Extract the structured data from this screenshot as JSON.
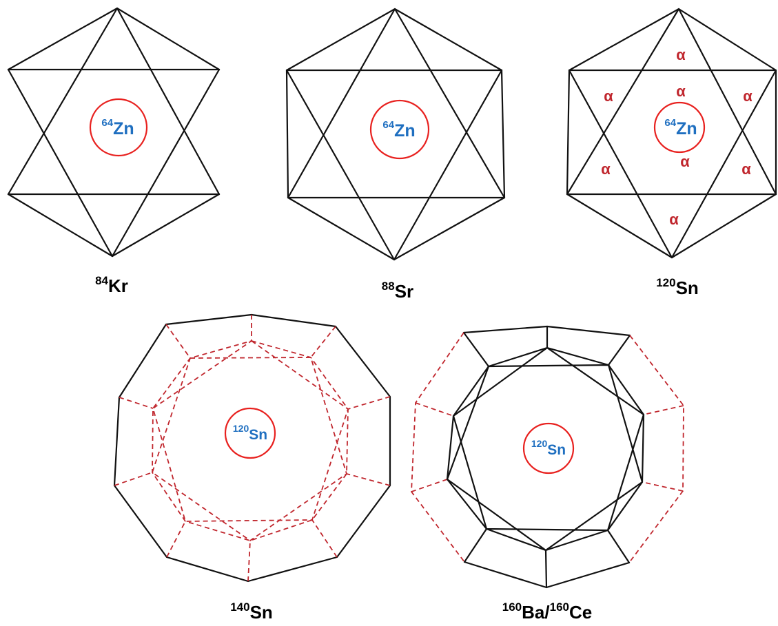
{
  "colors": {
    "edge": "#111111",
    "dashed_edge": "#c0262d",
    "core_ring": "#e8211f",
    "core_text": "#1f6fc0",
    "alpha_text": "#c0262d"
  },
  "panels": [
    {
      "label_mass": "84",
      "label_sym": "Kr",
      "core_mass": "64",
      "core_sym": "Zn"
    },
    {
      "label_mass": "88",
      "label_sym": "Sr",
      "core_mass": "64",
      "core_sym": "Zn"
    },
    {
      "label_mass": "120",
      "label_sym": "Sn",
      "core_mass": "64",
      "core_sym": "Zn",
      "alpha_symbol": "α"
    },
    {
      "label_mass": "140",
      "label_sym": "Sn",
      "core_mass": "120",
      "core_sym": "Sn"
    },
    {
      "label_mass": "160",
      "label_sym": "Ba/",
      "label_mass2": "160",
      "label_sym2": "Ce",
      "core_mass": "120",
      "core_sym": "Sn"
    }
  ]
}
